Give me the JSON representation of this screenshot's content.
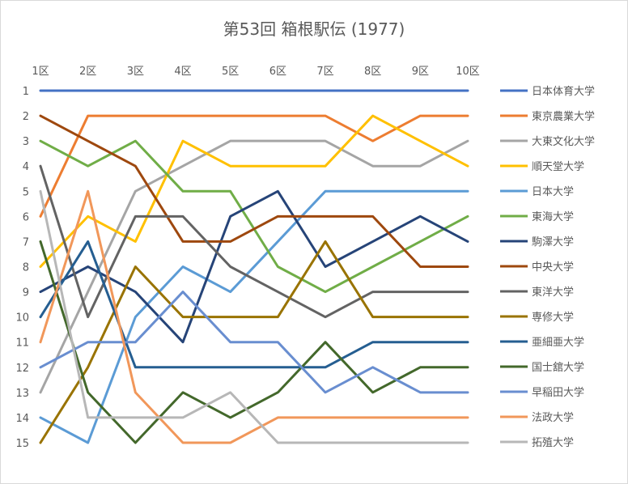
{
  "chart_data": {
    "type": "line",
    "title": "第53回 箱根駅伝 (1977)",
    "xlabel": "",
    "ylabel": "",
    "x": [
      "1区",
      "2区",
      "3区",
      "4区",
      "5区",
      "6区",
      "7区",
      "8区",
      "9区",
      "10区"
    ],
    "y_ticks": [
      "1",
      "2",
      "3",
      "4",
      "5",
      "6",
      "7",
      "8",
      "9",
      "10",
      "11",
      "12",
      "13",
      "14",
      "15"
    ],
    "ylim": [
      1,
      15
    ],
    "y_reversed": true,
    "x_axis_position": "top",
    "grid": false,
    "legend": "right",
    "series": [
      {
        "name": "日本体育大学",
        "color": "#4472C4",
        "values": [
          1,
          1,
          1,
          1,
          1,
          1,
          1,
          1,
          1,
          1
        ]
      },
      {
        "name": "東京農業大学",
        "color": "#ED7D31",
        "values": [
          6,
          2,
          2,
          2,
          2,
          2,
          2,
          3,
          2,
          2
        ]
      },
      {
        "name": "大東文化大学",
        "color": "#A5A5A5",
        "values": [
          13,
          9,
          5,
          4,
          3,
          3,
          3,
          4,
          4,
          3
        ]
      },
      {
        "name": "順天堂大学",
        "color": "#FFC000",
        "values": [
          8,
          6,
          7,
          3,
          4,
          4,
          4,
          2,
          3,
          4
        ]
      },
      {
        "name": "日本大学",
        "color": "#5B9BD5",
        "values": [
          14,
          15,
          10,
          8,
          9,
          7,
          5,
          5,
          5,
          5
        ]
      },
      {
        "name": "東海大学",
        "color": "#70AD47",
        "values": [
          3,
          4,
          3,
          5,
          5,
          8,
          9,
          8,
          7,
          6
        ]
      },
      {
        "name": "駒澤大学",
        "color": "#264478",
        "values": [
          9,
          8,
          9,
          11,
          6,
          5,
          8,
          7,
          6,
          7
        ]
      },
      {
        "name": "中央大学",
        "color": "#9E480E",
        "values": [
          2,
          3,
          4,
          7,
          7,
          6,
          6,
          6,
          8,
          8
        ]
      },
      {
        "name": "東洋大学",
        "color": "#636363",
        "values": [
          4,
          10,
          6,
          6,
          8,
          9,
          10,
          9,
          9,
          9
        ]
      },
      {
        "name": "専修大学",
        "color": "#997300",
        "values": [
          15,
          12,
          8,
          10,
          10,
          10,
          7,
          10,
          10,
          10
        ]
      },
      {
        "name": "亜細亜大学",
        "color": "#255E91",
        "values": [
          10,
          7,
          12,
          12,
          12,
          12,
          12,
          11,
          11,
          11
        ]
      },
      {
        "name": "国士舘大学",
        "color": "#43682B",
        "values": [
          7,
          13,
          15,
          13,
          14,
          13,
          11,
          13,
          12,
          12
        ]
      },
      {
        "name": "早稲田大学",
        "color": "#698ED0",
        "values": [
          12,
          11,
          11,
          9,
          11,
          11,
          13,
          12,
          13,
          13
        ]
      },
      {
        "name": "法政大学",
        "color": "#F1975A",
        "values": [
          11,
          5,
          13,
          15,
          15,
          14,
          14,
          14,
          14,
          14
        ]
      },
      {
        "name": "拓殖大学",
        "color": "#B7B7B7",
        "values": [
          5,
          14,
          14,
          14,
          13,
          15,
          15,
          15,
          15,
          15
        ]
      }
    ]
  }
}
